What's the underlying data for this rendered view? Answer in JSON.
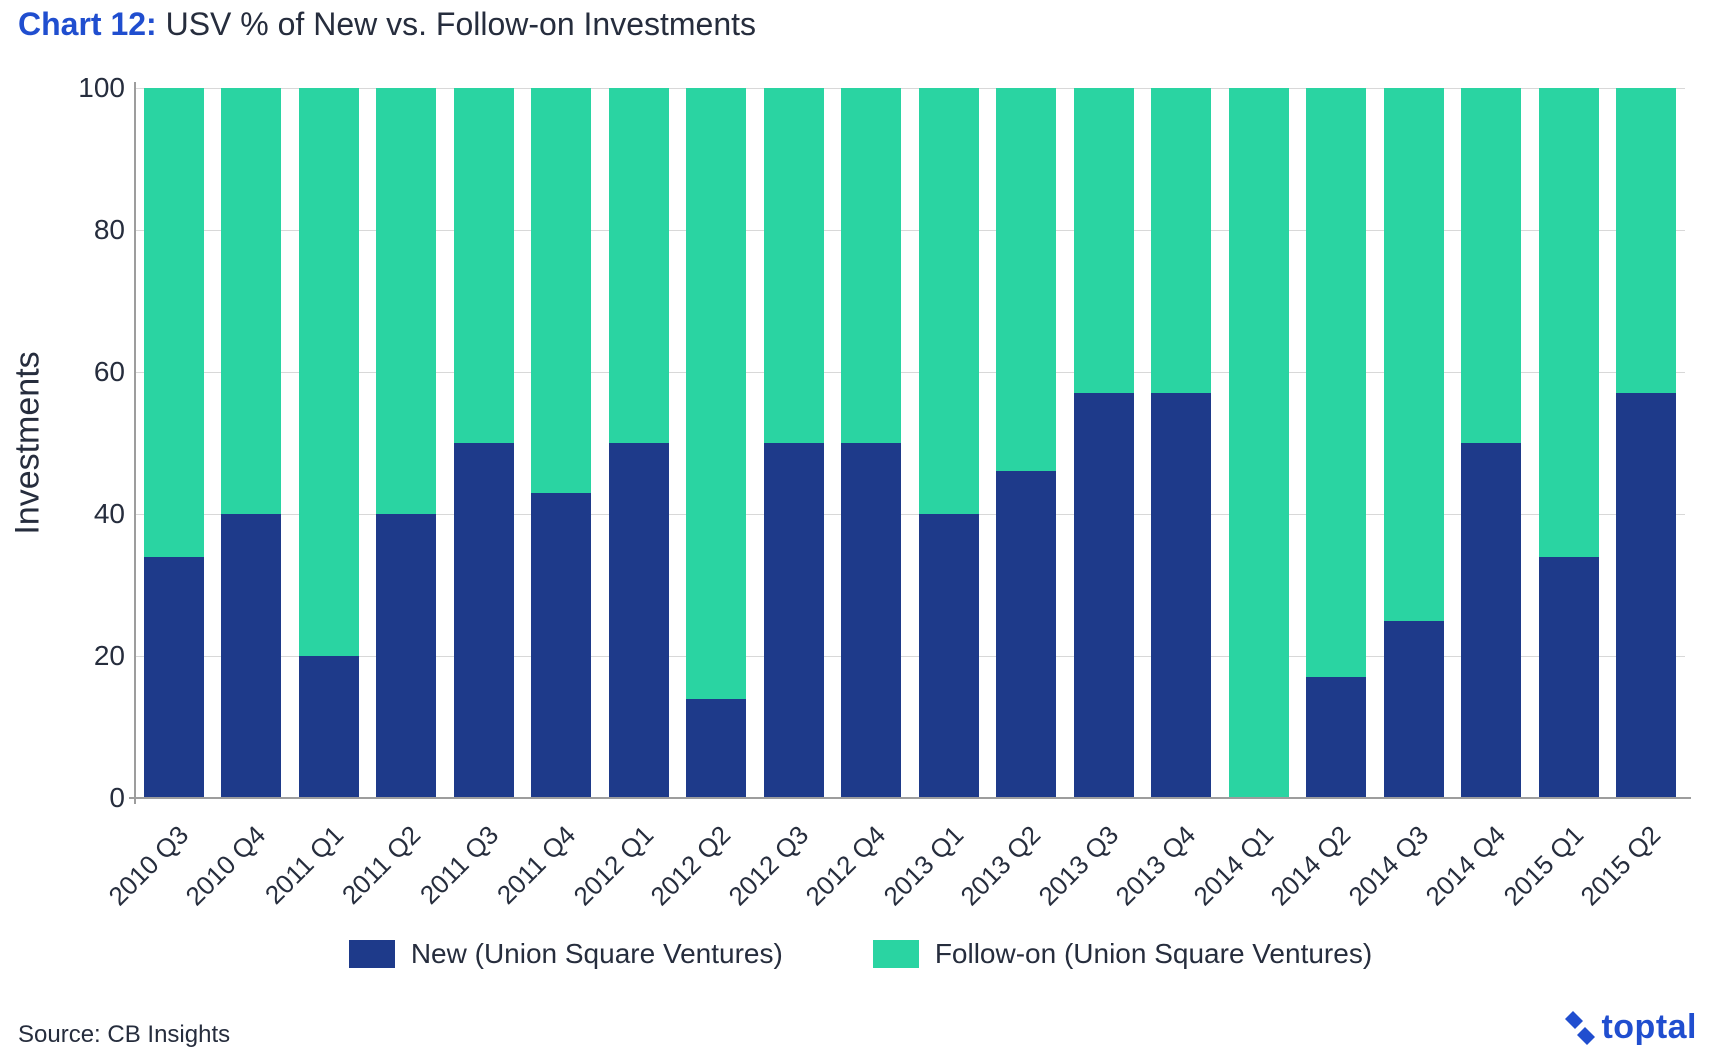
{
  "title": {
    "prefix": "Chart 12:",
    "text": " USV % of New vs. Follow-on Investments",
    "prefix_color": "#204ecf",
    "text_color": "#262d3d",
    "fontsize": 32
  },
  "chart": {
    "type": "stacked-bar",
    "background_color": "#ffffff",
    "grid_color": "#d8d8d8",
    "axis_color": "#9d9d9d",
    "label_color": "#262d3d",
    "label_fontsize": 28,
    "yaxis": {
      "title": "Investments",
      "title_fontsize": 34,
      "min": 0,
      "max": 100,
      "tick_step": 20,
      "ticks": [
        0,
        20,
        40,
        60,
        80,
        100
      ]
    },
    "categories": [
      "2010 Q3",
      "2010 Q4",
      "2011 Q1",
      "2011 Q2",
      "2011 Q3",
      "2011 Q4",
      "2012 Q1",
      "2012 Q2",
      "2012 Q3",
      "2012 Q4",
      "2013 Q1",
      "2013 Q2",
      "2013 Q3",
      "2013 Q4",
      "2014 Q1",
      "2014 Q2",
      "2014 Q3",
      "2014 Q4",
      "2015 Q1",
      "2015 Q2"
    ],
    "series": [
      {
        "name": "New (Union Square Ventures)",
        "color": "#1e3a8a",
        "values": [
          34,
          40,
          20,
          40,
          50,
          43,
          50,
          14,
          50,
          50,
          40,
          46,
          57,
          57,
          0,
          17,
          25,
          50,
          34,
          57
        ]
      },
      {
        "name": "Follow-on (Union Square Ventures)",
        "color": "#2ad4a2",
        "values": [
          66,
          60,
          80,
          60,
          50,
          57,
          50,
          86,
          50,
          50,
          60,
          54,
          43,
          43,
          100,
          83,
          75,
          50,
          66,
          43
        ]
      }
    ],
    "bar_width_ratio": 0.78,
    "x_tick_rotation_deg": -45
  },
  "legend": {
    "fontsize": 28,
    "items": [
      {
        "label": "New (Union Square Ventures)",
        "color": "#1e3a8a"
      },
      {
        "label": "Follow-on (Union Square Ventures)",
        "color": "#2ad4a2"
      }
    ]
  },
  "source": {
    "prefix": "Source: ",
    "text": "CB Insights",
    "fontsize": 24
  },
  "brand": {
    "name": "toptal",
    "color": "#204ecf",
    "fontsize": 34
  }
}
